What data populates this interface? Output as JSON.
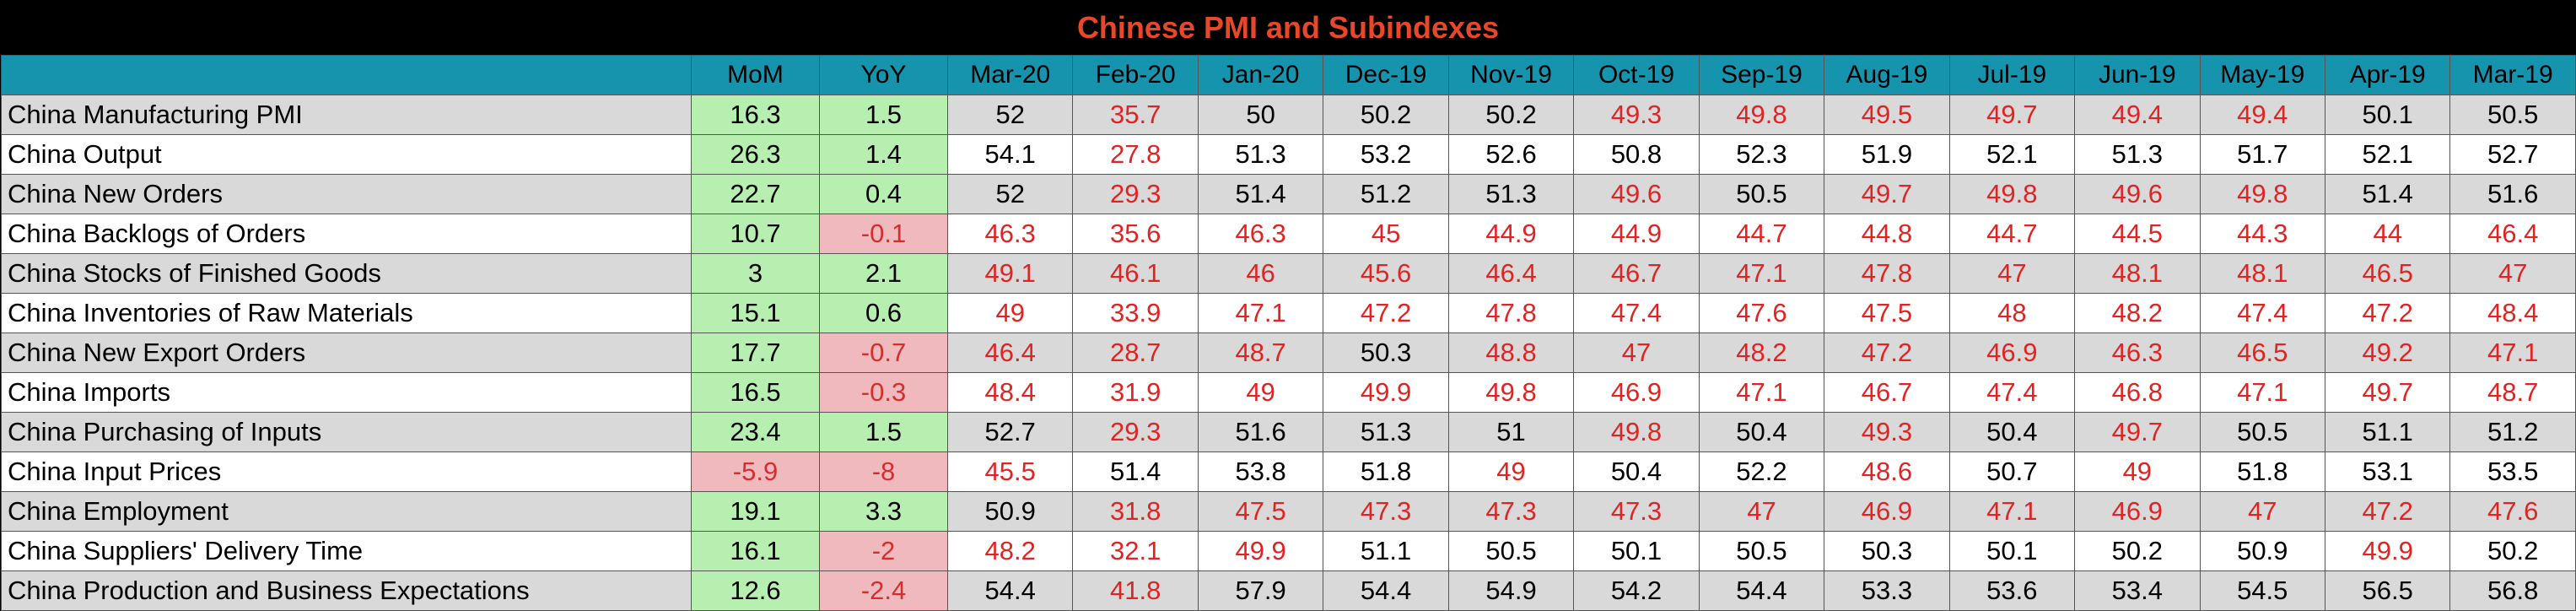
{
  "chart_data": {
    "type": "table",
    "title": "Chinese PMI and Subindexes",
    "columns": [
      "",
      "MoM",
      "YoY",
      "Mar-20",
      "Feb-20",
      "Jan-20",
      "Dec-19",
      "Nov-19",
      "Oct-19",
      "Sep-19",
      "Aug-19",
      "Jul-19",
      "Jun-19",
      "May-19",
      "Apr-19",
      "Mar-19"
    ],
    "rows": [
      {
        "label": "China Manufacturing PMI",
        "mom": 16.3,
        "yoy": 1.5,
        "values": [
          52,
          35.7,
          50,
          50.2,
          50.2,
          49.3,
          49.8,
          49.5,
          49.7,
          49.4,
          49.4,
          50.1,
          50.5
        ]
      },
      {
        "label": "China Output",
        "mom": 26.3,
        "yoy": 1.4,
        "values": [
          54.1,
          27.8,
          51.3,
          53.2,
          52.6,
          50.8,
          52.3,
          51.9,
          52.1,
          51.3,
          51.7,
          52.1,
          52.7
        ]
      },
      {
        "label": "China New Orders",
        "mom": 22.7,
        "yoy": 0.4,
        "values": [
          52,
          29.3,
          51.4,
          51.2,
          51.3,
          49.6,
          50.5,
          49.7,
          49.8,
          49.6,
          49.8,
          51.4,
          51.6
        ]
      },
      {
        "label": "China Backlogs of Orders",
        "mom": 10.7,
        "yoy": -0.1,
        "values": [
          46.3,
          35.6,
          46.3,
          45,
          44.9,
          44.9,
          44.7,
          44.8,
          44.7,
          44.5,
          44.3,
          44,
          46.4
        ]
      },
      {
        "label": "China Stocks of Finished Goods",
        "mom": 3,
        "yoy": 2.1,
        "values": [
          49.1,
          46.1,
          46,
          45.6,
          46.4,
          46.7,
          47.1,
          47.8,
          47,
          48.1,
          48.1,
          46.5,
          47
        ]
      },
      {
        "label": "China Inventories of Raw Materials",
        "mom": 15.1,
        "yoy": 0.6,
        "values": [
          49,
          33.9,
          47.1,
          47.2,
          47.8,
          47.4,
          47.6,
          47.5,
          48,
          48.2,
          47.4,
          47.2,
          48.4
        ]
      },
      {
        "label": "China New Export Orders",
        "mom": 17.7,
        "yoy": -0.7,
        "values": [
          46.4,
          28.7,
          48.7,
          50.3,
          48.8,
          47,
          48.2,
          47.2,
          46.9,
          46.3,
          46.5,
          49.2,
          47.1
        ]
      },
      {
        "label": "China Imports",
        "mom": 16.5,
        "yoy": -0.3,
        "values": [
          48.4,
          31.9,
          49,
          49.9,
          49.8,
          46.9,
          47.1,
          46.7,
          47.4,
          46.8,
          47.1,
          49.7,
          48.7
        ]
      },
      {
        "label": "China Purchasing of Inputs",
        "mom": 23.4,
        "yoy": 1.5,
        "values": [
          52.7,
          29.3,
          51.6,
          51.3,
          51,
          49.8,
          50.4,
          49.3,
          50.4,
          49.7,
          50.5,
          51.1,
          51.2
        ]
      },
      {
        "label": "China Input Prices",
        "mom": -5.9,
        "yoy": -8,
        "values": [
          45.5,
          51.4,
          53.8,
          51.8,
          49,
          50.4,
          52.2,
          48.6,
          50.7,
          49,
          51.8,
          53.1,
          53.5
        ]
      },
      {
        "label": "China Employment",
        "mom": 19.1,
        "yoy": 3.3,
        "values": [
          50.9,
          31.8,
          47.5,
          47.3,
          47.3,
          47.3,
          47,
          46.9,
          47.1,
          46.9,
          47,
          47.2,
          47.6
        ]
      },
      {
        "label": "China Suppliers' Delivery Time",
        "mom": 16.1,
        "yoy": -2,
        "values": [
          48.2,
          32.1,
          49.9,
          51.1,
          50.5,
          50.1,
          50.5,
          50.3,
          50.1,
          50.2,
          50.9,
          49.9,
          50.2
        ]
      },
      {
        "label": "China Production and Business Expectations",
        "mom": 12.6,
        "yoy": -2.4,
        "values": [
          54.4,
          41.8,
          57.9,
          54.4,
          54.9,
          54.2,
          54.4,
          53.3,
          53.6,
          53.4,
          54.5,
          56.5,
          56.8
        ]
      }
    ]
  },
  "colors": {
    "title_text": "#e8472a",
    "title_bg": "#000000",
    "header_bg": "#1694ad",
    "positive_fill": "#b7efb0",
    "negative_fill": "#f0b9bd",
    "expansion_text": "#000000",
    "contraction_text": "#e02424",
    "row_shade": "#d9d9d9"
  }
}
